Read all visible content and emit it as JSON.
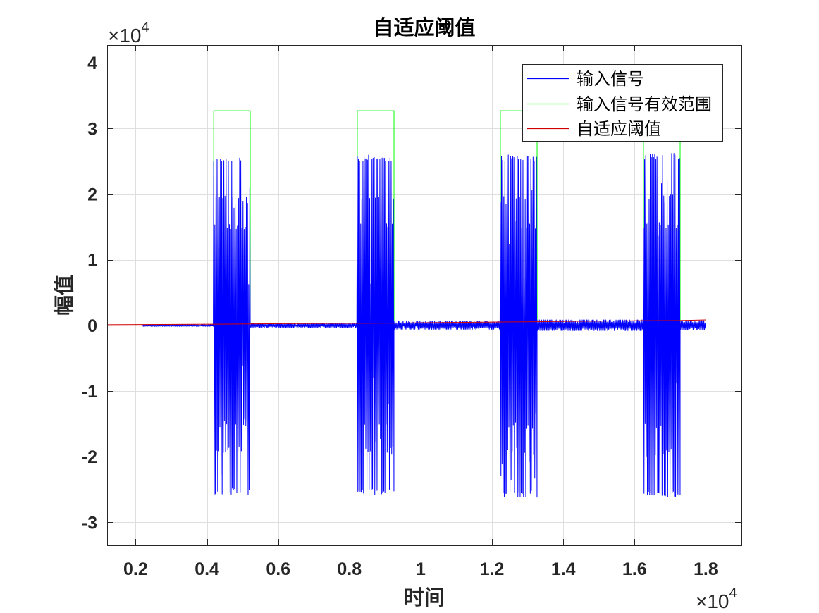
{
  "chart_data": {
    "type": "line",
    "title": "自适应阈值",
    "xlabel": "时间",
    "ylabel": "幅值",
    "x_exponent": {
      "base": "×10",
      "power": "4"
    },
    "y_exponent": {
      "base": "×10",
      "power": "4"
    },
    "xlim": [
      1200,
      19000
    ],
    "ylim": [
      -33500,
      42700
    ],
    "xticks": [
      2000,
      4000,
      6000,
      8000,
      10000,
      12000,
      14000,
      16000,
      18000
    ],
    "xticklabels": [
      "0.2",
      "0.4",
      "0.6",
      "0.8",
      "1",
      "1.2",
      "1.4",
      "1.6",
      "1.8"
    ],
    "yticks": [
      -30000,
      -20000,
      -10000,
      0,
      10000,
      20000,
      30000,
      40000
    ],
    "yticklabels": [
      "-3",
      "-2",
      "-1",
      "0",
      "1",
      "2",
      "3",
      "4"
    ],
    "grid": true,
    "legend": "top-right",
    "series": [
      {
        "name": "输入信号",
        "color": "#0000ff",
        "segments": [
          {
            "x": [
              2200,
              4190
            ],
            "min": -150,
            "max": 150
          },
          {
            "x": [
              4190,
              5215
            ],
            "min": -25800,
            "max": 25900
          },
          {
            "x": [
              5215,
              8220
            ],
            "min": -350,
            "max": 350
          },
          {
            "x": [
              8220,
              9250
            ],
            "min": -25900,
            "max": 26000
          },
          {
            "x": [
              9250,
              12235
            ],
            "min": -600,
            "max": 650
          },
          {
            "x": [
              12235,
              13265
            ],
            "min": -26200,
            "max": 26000
          },
          {
            "x": [
              13265,
              16250
            ],
            "min": -800,
            "max": 850
          },
          {
            "x": [
              16250,
              17280
            ],
            "min": -26300,
            "max": 26300
          },
          {
            "x": [
              17280,
              18000
            ],
            "min": -700,
            "max": 750
          }
        ]
      },
      {
        "name": "输入信号有效范围",
        "color": "#00ff00",
        "x": [
          2200,
          4190,
          4190,
          5215,
          5215,
          8220,
          8220,
          9250,
          9250,
          12235,
          12235,
          13265,
          13265,
          16250,
          16250,
          17280,
          17280,
          18000
        ],
        "y": [
          0,
          0,
          32700,
          32700,
          0,
          0,
          32700,
          32700,
          0,
          0,
          32700,
          32700,
          0,
          0,
          32700,
          32700,
          0,
          0
        ]
      },
      {
        "name": "自适应阈值",
        "color": "#d00000",
        "x": [
          1200,
          4190,
          5215,
          6000,
          8220,
          9250,
          10000,
          12235,
          13265,
          14000,
          16250,
          17280,
          17500,
          18000
        ],
        "y": [
          100,
          180,
          220,
          270,
          320,
          350,
          400,
          520,
          560,
          620,
          720,
          750,
          780,
          850
        ]
      }
    ]
  }
}
